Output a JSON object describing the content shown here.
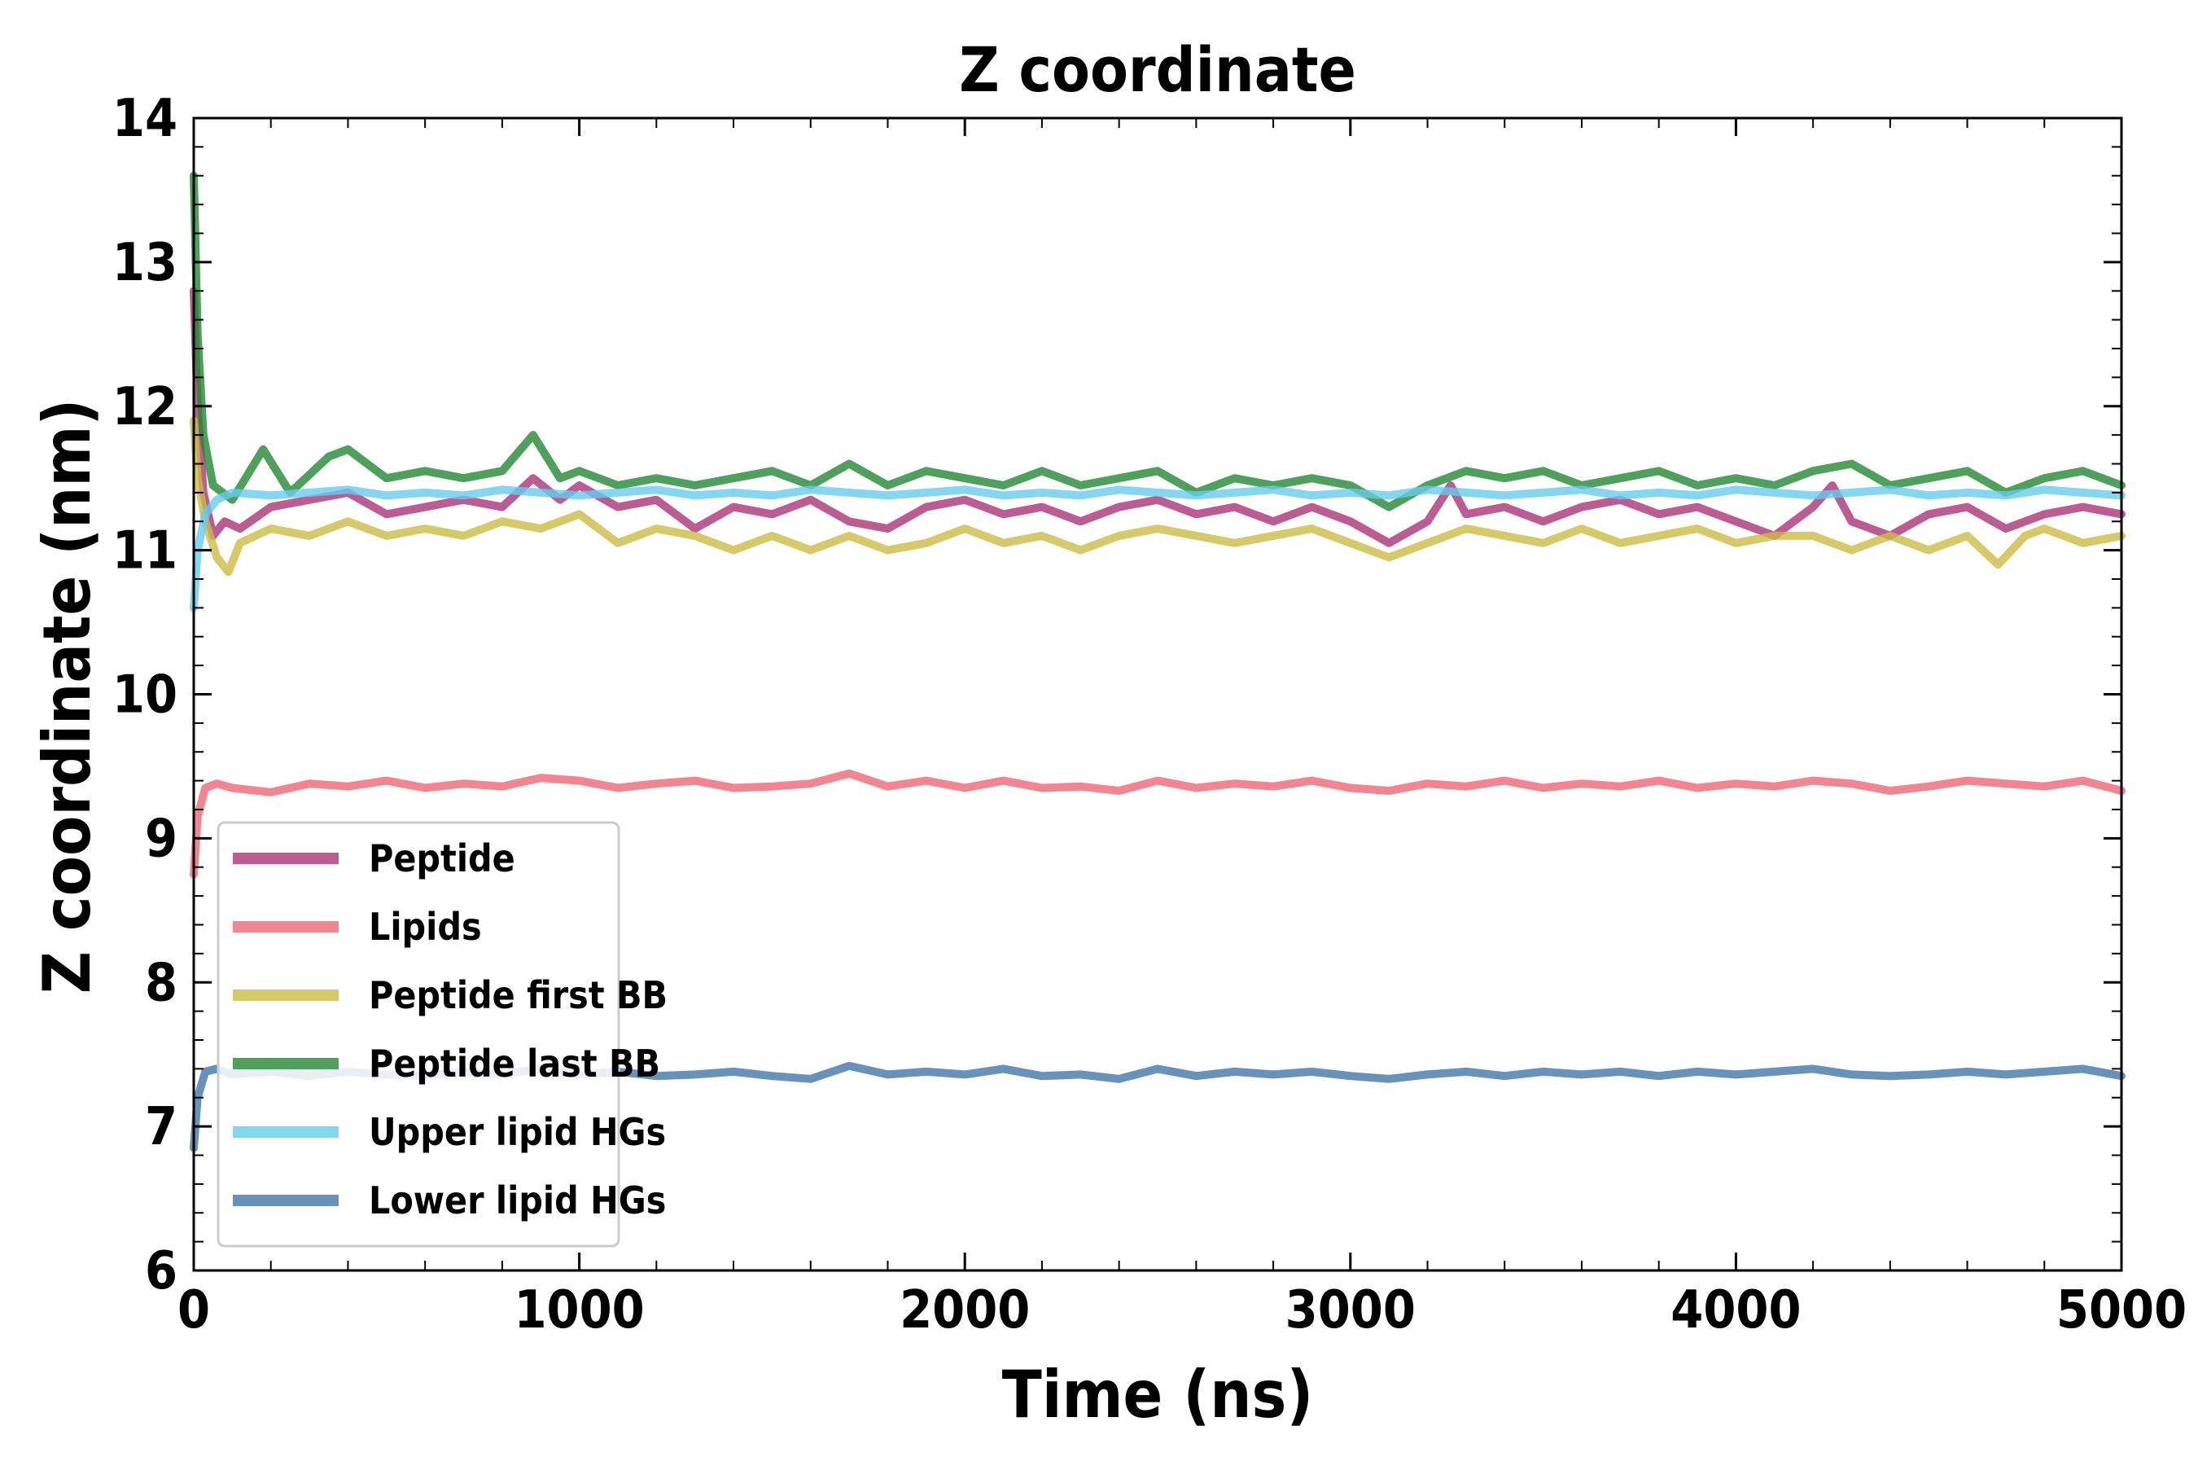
{
  "chart_data": {
    "type": "line",
    "title": "Z coordinate",
    "xlabel": "Time (ns)",
    "ylabel": "Z coordinate (nm)",
    "xlim": [
      0,
      5000
    ],
    "ylim": [
      6,
      14
    ],
    "xticks": [
      "0",
      "1000",
      "2000",
      "3000",
      "4000",
      "5000"
    ],
    "yticks": [
      "6",
      "7",
      "8",
      "9",
      "10",
      "11",
      "12",
      "13",
      "14"
    ],
    "grid": false,
    "legend_position": "lower-left",
    "series": [
      {
        "name": "Peptide",
        "color": "#aa3377",
        "x": [
          0,
          10,
          25,
          50,
          80,
          120,
          200,
          300,
          400,
          500,
          600,
          700,
          800,
          880,
          950,
          1000,
          1100,
          1200,
          1300,
          1400,
          1500,
          1600,
          1700,
          1800,
          1900,
          2000,
          2100,
          2200,
          2300,
          2400,
          2500,
          2600,
          2700,
          2800,
          2900,
          3000,
          3100,
          3200,
          3260,
          3300,
          3400,
          3500,
          3600,
          3700,
          3800,
          3900,
          4000,
          4100,
          4200,
          4250,
          4300,
          4400,
          4500,
          4600,
          4700,
          4800,
          4900,
          5000
        ],
        "y": [
          12.8,
          12.0,
          11.4,
          11.1,
          11.2,
          11.15,
          11.3,
          11.35,
          11.4,
          11.25,
          11.3,
          11.35,
          11.3,
          11.5,
          11.35,
          11.45,
          11.3,
          11.35,
          11.15,
          11.3,
          11.25,
          11.35,
          11.2,
          11.15,
          11.3,
          11.35,
          11.25,
          11.3,
          11.2,
          11.3,
          11.35,
          11.25,
          11.3,
          11.2,
          11.3,
          11.2,
          11.05,
          11.2,
          11.45,
          11.25,
          11.3,
          11.2,
          11.3,
          11.35,
          11.25,
          11.3,
          11.2,
          11.1,
          11.3,
          11.45,
          11.2,
          11.1,
          11.25,
          11.3,
          11.15,
          11.25,
          11.3,
          11.25
        ]
      },
      {
        "name": "Lipids",
        "color": "#ee6677",
        "x": [
          0,
          10,
          30,
          60,
          100,
          200,
          300,
          400,
          500,
          600,
          700,
          800,
          900,
          1000,
          1100,
          1200,
          1300,
          1400,
          1500,
          1600,
          1700,
          1800,
          1900,
          2000,
          2100,
          2200,
          2300,
          2400,
          2500,
          2600,
          2700,
          2800,
          2900,
          3000,
          3100,
          3200,
          3300,
          3400,
          3500,
          3600,
          3700,
          3800,
          3900,
          4000,
          4100,
          4200,
          4300,
          4400,
          4500,
          4600,
          4700,
          4800,
          4900,
          5000
        ],
        "y": [
          8.75,
          9.15,
          9.35,
          9.38,
          9.35,
          9.32,
          9.38,
          9.36,
          9.4,
          9.35,
          9.38,
          9.36,
          9.42,
          9.4,
          9.35,
          9.38,
          9.4,
          9.35,
          9.36,
          9.38,
          9.45,
          9.36,
          9.4,
          9.35,
          9.4,
          9.35,
          9.36,
          9.33,
          9.4,
          9.35,
          9.38,
          9.36,
          9.4,
          9.35,
          9.33,
          9.38,
          9.36,
          9.4,
          9.35,
          9.38,
          9.36,
          9.4,
          9.35,
          9.38,
          9.36,
          9.4,
          9.38,
          9.33,
          9.36,
          9.4,
          9.38,
          9.36,
          9.4,
          9.33
        ]
      },
      {
        "name": "Peptide first BB",
        "color": "#ccbb44",
        "x": [
          0,
          10,
          30,
          60,
          90,
          120,
          200,
          300,
          400,
          500,
          600,
          700,
          800,
          900,
          1000,
          1100,
          1200,
          1300,
          1400,
          1500,
          1600,
          1700,
          1800,
          1900,
          2000,
          2100,
          2200,
          2300,
          2400,
          2500,
          2600,
          2700,
          2800,
          2900,
          3000,
          3100,
          3200,
          3300,
          3400,
          3500,
          3600,
          3700,
          3800,
          3900,
          4000,
          4100,
          4200,
          4300,
          4400,
          4500,
          4600,
          4680,
          4750,
          4800,
          4900,
          5000
        ],
        "y": [
          11.9,
          11.5,
          11.2,
          10.95,
          10.85,
          11.05,
          11.15,
          11.1,
          11.2,
          11.1,
          11.15,
          11.1,
          11.2,
          11.15,
          11.25,
          11.05,
          11.15,
          11.1,
          11.0,
          11.1,
          11.0,
          11.1,
          11.0,
          11.05,
          11.15,
          11.05,
          11.1,
          11.0,
          11.1,
          11.15,
          11.1,
          11.05,
          11.1,
          11.15,
          11.05,
          10.95,
          11.05,
          11.15,
          11.1,
          11.05,
          11.15,
          11.05,
          11.1,
          11.15,
          11.05,
          11.1,
          11.1,
          11.0,
          11.1,
          11.0,
          11.1,
          10.9,
          11.1,
          11.15,
          11.05,
          11.1
        ]
      },
      {
        "name": "Peptide last BB",
        "color": "#228833",
        "x": [
          0,
          10,
          25,
          50,
          100,
          180,
          250,
          350,
          400,
          500,
          600,
          700,
          800,
          880,
          950,
          1000,
          1100,
          1200,
          1300,
          1400,
          1500,
          1600,
          1700,
          1800,
          1900,
          2000,
          2100,
          2200,
          2300,
          2400,
          2500,
          2600,
          2700,
          2800,
          2900,
          3000,
          3100,
          3200,
          3300,
          3400,
          3500,
          3600,
          3700,
          3800,
          3900,
          4000,
          4100,
          4200,
          4300,
          4400,
          4500,
          4600,
          4700,
          4800,
          4900,
          5000
        ],
        "y": [
          13.6,
          12.5,
          11.8,
          11.45,
          11.35,
          11.7,
          11.4,
          11.65,
          11.7,
          11.5,
          11.55,
          11.5,
          11.55,
          11.8,
          11.5,
          11.55,
          11.45,
          11.5,
          11.45,
          11.5,
          11.55,
          11.45,
          11.6,
          11.45,
          11.55,
          11.5,
          11.45,
          11.55,
          11.45,
          11.5,
          11.55,
          11.4,
          11.5,
          11.45,
          11.5,
          11.45,
          11.3,
          11.45,
          11.55,
          11.5,
          11.55,
          11.45,
          11.5,
          11.55,
          11.45,
          11.5,
          11.45,
          11.55,
          11.6,
          11.45,
          11.5,
          11.55,
          11.4,
          11.5,
          11.55,
          11.45
        ]
      },
      {
        "name": "Upper lipid HGs",
        "color": "#66ccee",
        "x": [
          0,
          10,
          30,
          60,
          100,
          200,
          300,
          400,
          500,
          600,
          700,
          800,
          900,
          1000,
          1100,
          1200,
          1300,
          1400,
          1500,
          1600,
          1700,
          1800,
          1900,
          2000,
          2100,
          2200,
          2300,
          2400,
          2500,
          2600,
          2700,
          2800,
          2900,
          3000,
          3100,
          3200,
          3300,
          3400,
          3500,
          3600,
          3700,
          3800,
          3900,
          4000,
          4100,
          4200,
          4300,
          4400,
          4500,
          4600,
          4700,
          4800,
          4900,
          5000
        ],
        "y": [
          10.6,
          11.0,
          11.25,
          11.35,
          11.4,
          11.38,
          11.4,
          11.42,
          11.38,
          11.4,
          11.38,
          11.42,
          11.4,
          11.38,
          11.4,
          11.42,
          11.38,
          11.4,
          11.38,
          11.42,
          11.4,
          11.38,
          11.4,
          11.42,
          11.38,
          11.4,
          11.38,
          11.42,
          11.4,
          11.38,
          11.4,
          11.42,
          11.38,
          11.4,
          11.38,
          11.42,
          11.4,
          11.38,
          11.4,
          11.42,
          11.38,
          11.4,
          11.38,
          11.42,
          11.4,
          11.38,
          11.4,
          11.42,
          11.38,
          11.4,
          11.38,
          11.42,
          11.4,
          11.38
        ]
      },
      {
        "name": "Lower lipid HGs",
        "color": "#4477aa",
        "x": [
          0,
          10,
          30,
          60,
          100,
          200,
          300,
          400,
          500,
          600,
          700,
          800,
          900,
          1000,
          1100,
          1200,
          1300,
          1400,
          1500,
          1600,
          1700,
          1800,
          1900,
          2000,
          2100,
          2200,
          2300,
          2400,
          2500,
          2600,
          2700,
          2800,
          2900,
          3000,
          3100,
          3200,
          3300,
          3400,
          3500,
          3600,
          3700,
          3800,
          3900,
          4000,
          4100,
          4200,
          4300,
          4400,
          4500,
          4600,
          4700,
          4800,
          4900,
          5000
        ],
        "y": [
          6.85,
          7.2,
          7.38,
          7.4,
          7.36,
          7.38,
          7.35,
          7.38,
          7.36,
          7.35,
          7.38,
          7.36,
          7.4,
          7.36,
          7.38,
          7.35,
          7.36,
          7.38,
          7.35,
          7.33,
          7.42,
          7.36,
          7.38,
          7.36,
          7.4,
          7.35,
          7.36,
          7.33,
          7.4,
          7.35,
          7.38,
          7.36,
          7.38,
          7.35,
          7.33,
          7.36,
          7.38,
          7.35,
          7.38,
          7.36,
          7.38,
          7.35,
          7.38,
          7.36,
          7.38,
          7.4,
          7.36,
          7.35,
          7.36,
          7.38,
          7.36,
          7.38,
          7.4,
          7.35
        ]
      }
    ]
  }
}
